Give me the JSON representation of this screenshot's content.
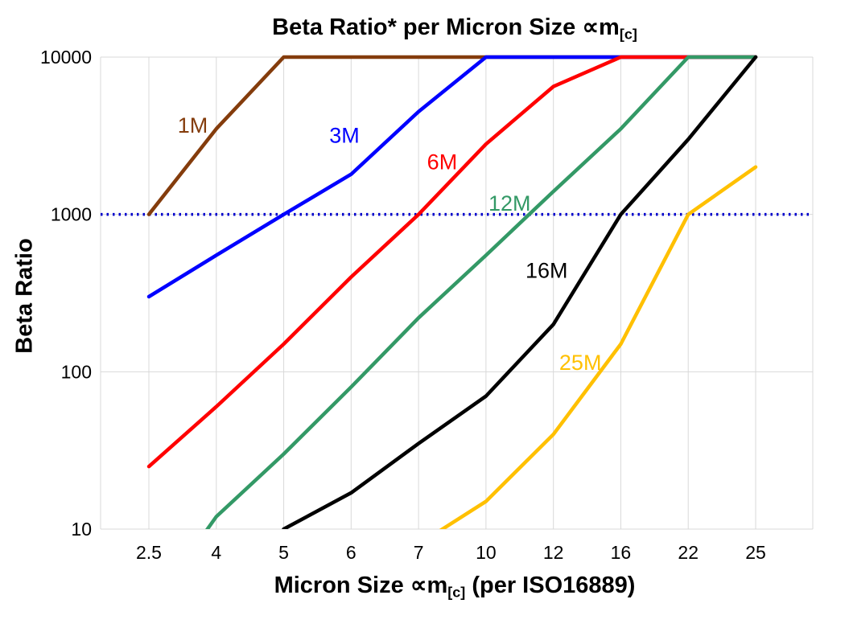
{
  "title": {
    "prefix": "Beta Ratio* per Micron Size ",
    "mu": "∝m",
    "sub": "[c]"
  },
  "x_axis_title": {
    "prefix": "Micron Size ",
    "mu": "∝m",
    "sub": "[c]",
    "suffix": " (per ISO16889)"
  },
  "y_axis_title": "Beta Ratio",
  "colors": {
    "background": "#FFFFFF",
    "grid": "#D9D9D9",
    "axis_text": "#000000",
    "reference_line": "#0000CC"
  },
  "chart_data": {
    "type": "line",
    "title": "Beta Ratio* per Micron Size ∝m[c]",
    "xlabel": "Micron Size ∝m[c] (per ISO16889)",
    "ylabel": "Beta Ratio",
    "x_categories": [
      "2.5",
      "4",
      "5",
      "6",
      "7",
      "10",
      "12",
      "16",
      "22",
      "25"
    ],
    "y_scale": "log",
    "y_ticks": [
      10,
      100,
      1000,
      10000
    ],
    "ylim": [
      10,
      10000
    ],
    "grid": true,
    "legend_position": "inline-labels",
    "reference_line": {
      "value": 1000,
      "style": "dotted",
      "color": "#0000CC"
    },
    "series": [
      {
        "name": "1M",
        "color": "#843C0C",
        "values": [
          1000,
          3500,
          10000,
          10000,
          10000,
          10000,
          10000,
          10000,
          10000,
          10000
        ],
        "label_at": {
          "ci": 0.65,
          "v": 3600
        }
      },
      {
        "name": "3M",
        "color": "#0000FF",
        "values": [
          300,
          550,
          1000,
          1800,
          4500,
          10000,
          10000,
          10000,
          10000,
          10000
        ],
        "label_at": {
          "ci": 2.9,
          "v": 3100
        }
      },
      {
        "name": "6M",
        "color": "#FF0000",
        "values": [
          25,
          60,
          150,
          400,
          1000,
          2800,
          6500,
          10000,
          10000,
          10000
        ],
        "label_at": {
          "ci": 4.35,
          "v": 2100
        }
      },
      {
        "name": "12M",
        "color": "#339966",
        "values": [
          3,
          12,
          30,
          80,
          220,
          550,
          1400,
          3500,
          10000,
          10000
        ],
        "label_at": {
          "ci": 5.35,
          "v": 1150
        }
      },
      {
        "name": "16M",
        "color": "#000000",
        "values": [
          null,
          null,
          10,
          17,
          35,
          70,
          200,
          1000,
          3000,
          10000
        ],
        "label_at": {
          "ci": 5.9,
          "v": 430
        }
      },
      {
        "name": "25M",
        "color": "#FFC000",
        "values": [
          null,
          null,
          null,
          null,
          8,
          15,
          40,
          150,
          1000,
          2000
        ],
        "label_at": {
          "ci": 6.4,
          "v": 112
        }
      }
    ]
  }
}
